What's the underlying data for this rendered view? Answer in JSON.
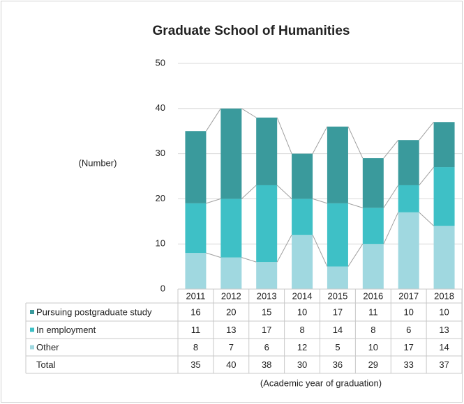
{
  "chart_data": {
    "type": "stacked_bar",
    "title": "Graduate School of Humanities",
    "y_label": "(Number)",
    "x_label": "(Academic year of graduation)",
    "categories": [
      "2011",
      "2012",
      "2013",
      "2014",
      "2015",
      "2016",
      "2017",
      "2018"
    ],
    "series": [
      {
        "name": "Pursuing postgraduate study",
        "color": "#3a9a9c",
        "values": [
          16,
          20,
          15,
          10,
          17,
          11,
          10,
          10
        ]
      },
      {
        "name": "In employment",
        "color": "#3ec0c6",
        "values": [
          11,
          13,
          17,
          8,
          14,
          8,
          6,
          13
        ]
      },
      {
        "name": "Other",
        "color": "#a0d8e0",
        "values": [
          8,
          7,
          6,
          12,
          5,
          10,
          17,
          14
        ]
      }
    ],
    "total": {
      "name": "Total",
      "values": [
        35,
        40,
        38,
        30,
        36,
        29,
        33,
        37
      ]
    },
    "ylim": [
      0,
      50
    ],
    "yticks": [
      0,
      10,
      20,
      30,
      40,
      50
    ],
    "grid": true
  }
}
